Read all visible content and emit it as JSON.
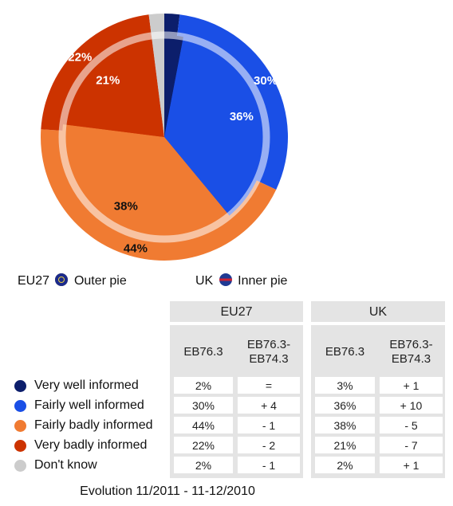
{
  "chart_data": {
    "type": "pie",
    "categories": [
      "Very well informed",
      "Fairly well informed",
      "Fairly badly informed",
      "Very badly informed",
      "Don't know"
    ],
    "colors": [
      "#0c1e6b",
      "#1a4fe6",
      "#f07b32",
      "#cc3300",
      "#cccccc"
    ],
    "label_colors": [
      "#ffffff",
      "#ffffff",
      "#111111",
      "#ffffff",
      "#ffffff"
    ],
    "series": [
      {
        "name": "EU27",
        "caption": "Outer pie",
        "values": [
          2,
          30,
          44,
          22,
          2
        ]
      },
      {
        "name": "UK",
        "caption": "Inner pie",
        "values": [
          3,
          36,
          38,
          21,
          2
        ]
      }
    ]
  },
  "table": {
    "groups": [
      "EU27",
      "UK"
    ],
    "columns": [
      "EB76.3",
      "EB76.3-EB74.3",
      "EB76.3",
      "EB76.3-EB74.3"
    ],
    "rows": [
      [
        "2%",
        "=",
        "3%",
        "+ 1"
      ],
      [
        "30%",
        "+ 4",
        "36%",
        "+ 10"
      ],
      [
        "44%",
        "- 1",
        "38%",
        "- 5"
      ],
      [
        "22%",
        "- 2",
        "21%",
        "- 7"
      ],
      [
        "2%",
        "- 1",
        "2%",
        "+ 1"
      ]
    ],
    "footer": "Evolution 11/2011 - 11-12/2010"
  }
}
